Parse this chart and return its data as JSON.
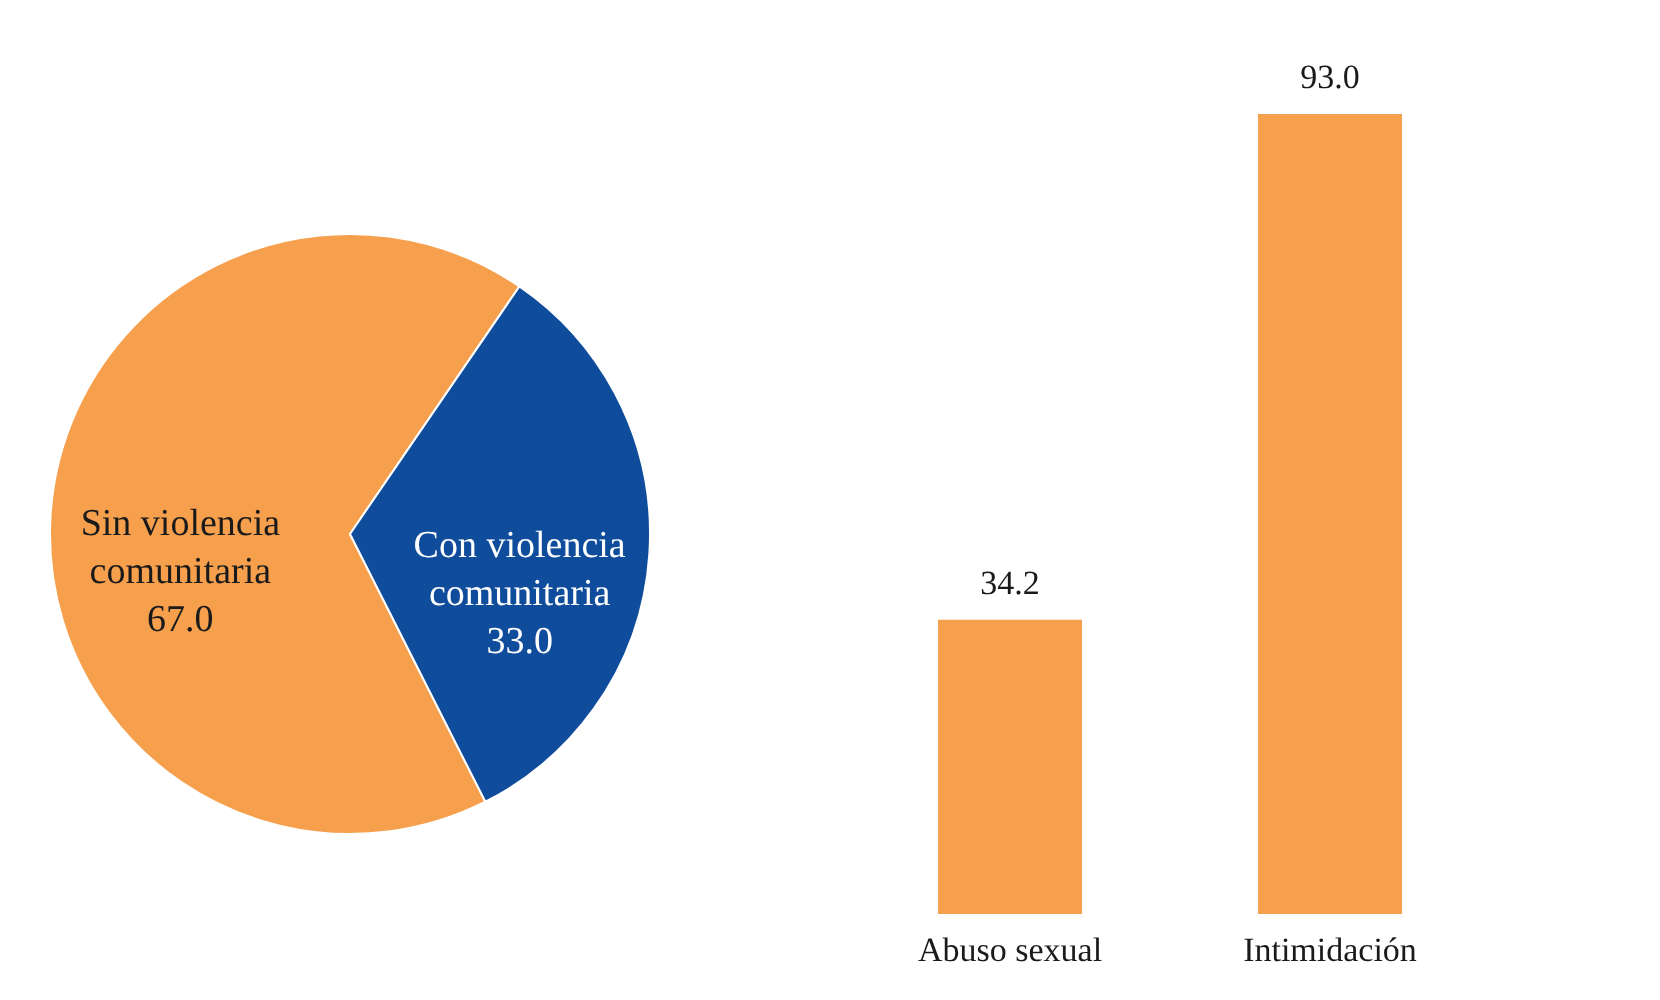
{
  "chart_data": [
    {
      "type": "pie",
      "categories": [
        "Sin violencia comunitaria",
        "Con violencia comunitaria"
      ],
      "values": [
        67.0,
        33.0
      ],
      "colors": [
        "#f6a04e",
        "#0f4c9c"
      ],
      "value_labels": [
        "67.0",
        "33.0"
      ]
    },
    {
      "type": "bar",
      "categories": [
        "Abuso sexual",
        "Intimidación"
      ],
      "values": [
        34.2,
        93.0
      ],
      "color": "#f6a04e",
      "value_labels": [
        "34.2",
        "93.0"
      ]
    }
  ]
}
